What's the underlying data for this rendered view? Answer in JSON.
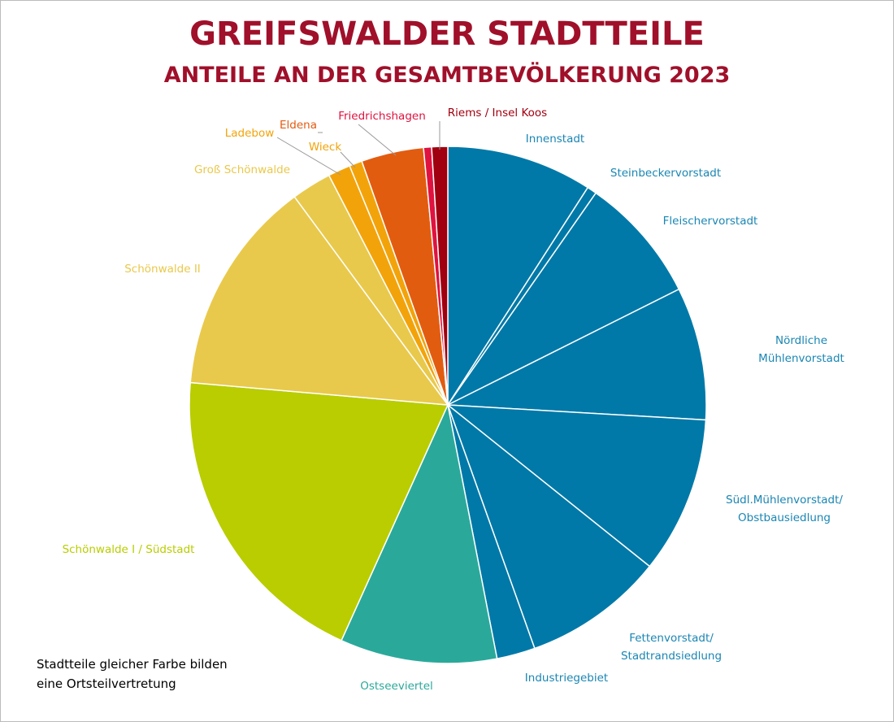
{
  "chart_data": {
    "type": "pie",
    "title": "GREIFSWALDER STADTTEILE",
    "subtitle": "ANTEILE AN DER GESAMTBEVÖLKERUNG 2023",
    "note": "Stadtteile gleicher Farbe bilden\neine Ortsteilvertretung",
    "categories": [
      "Innenstadt",
      "Steinbeckervorstadt",
      "Fleischervorstadt",
      "Nördliche Mühlenvorstadt",
      "Südl.Mühlenvorstadt/\nObstbausiedlung",
      "Fettenvorstadt/\nStadtrandsiedlung",
      "Industriegebiet",
      "Ostseeviertel",
      "Schönwalde  I / Südstadt",
      "Schönwalde  II",
      "Groß Schönwalde",
      "Ladebow",
      "Wieck",
      "Eldena",
      "Friedrichshagen",
      "Riems / Insel Koos"
    ],
    "values": [
      9.1,
      0.6,
      7.9,
      8.3,
      9.8,
      8.8,
      2.4,
      9.8,
      19.6,
      13.5,
      2.5,
      1.4,
      0.8,
      3.9,
      0.5,
      1.0
    ],
    "colors": [
      "#0079a8",
      "#0079a8",
      "#0079a8",
      "#0079a8",
      "#0079a8",
      "#0079a8",
      "#0079a8",
      "#2aa99b",
      "#b9cd00",
      "#e9c94b",
      "#e9c94b",
      "#f3a30a",
      "#f3a30a",
      "#e25c10",
      "#e0123f",
      "#a0000f"
    ]
  }
}
